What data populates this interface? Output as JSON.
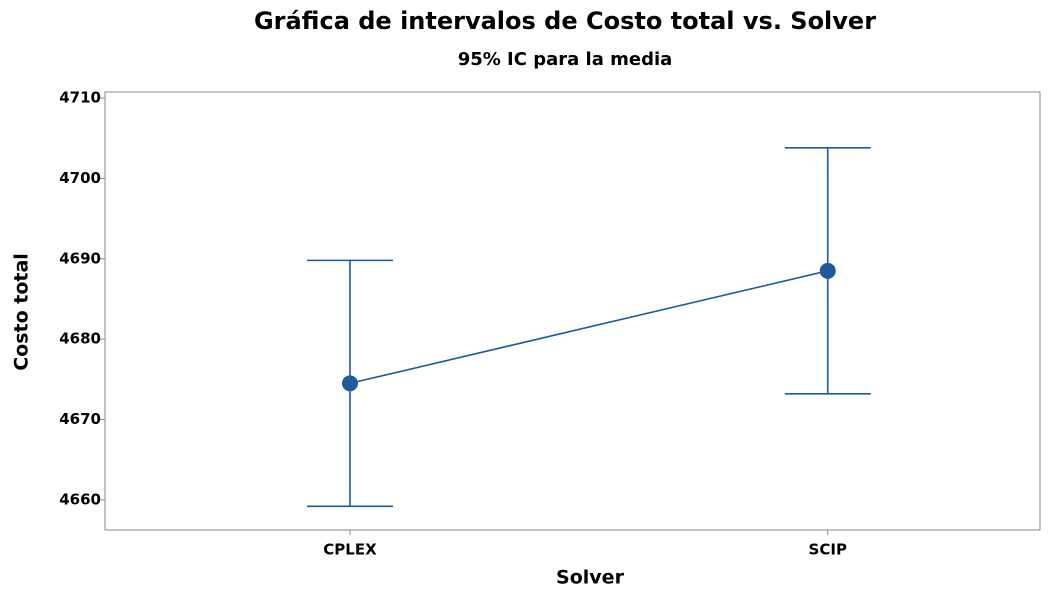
{
  "chart_data": {
    "type": "interval",
    "title": "Gráfica de intervalos de Costo total vs. Solver",
    "subtitle": "95% IC para la media",
    "x_label": "Solver",
    "y_label": "Costo total",
    "categories": [
      "CPLEX",
      "SCIP"
    ],
    "values": [
      4674.5,
      4688.5
    ],
    "lower": [
      4659.2,
      4673.2
    ],
    "upper": [
      4689.8,
      4703.8
    ],
    "color": "#1f5aa0",
    "ylim": [
      4656.25,
      4710.75
    ],
    "yticks": [
      4660,
      4670,
      4680,
      4690,
      4700,
      4710
    ]
  }
}
